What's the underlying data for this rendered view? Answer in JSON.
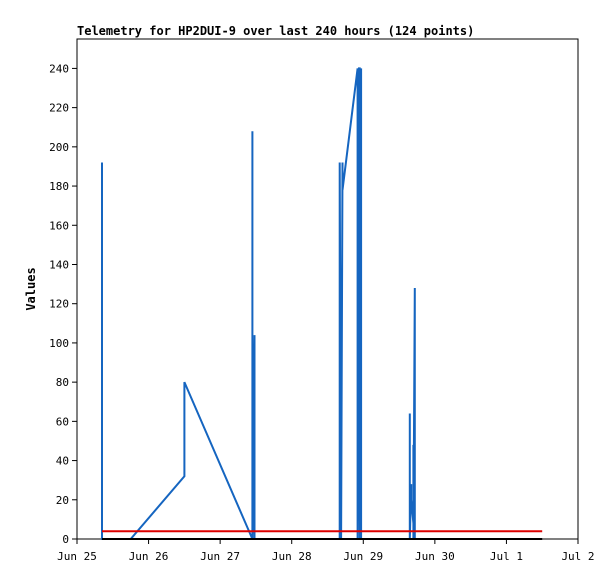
{
  "chart_data": {
    "type": "line",
    "title": "Telemetry for HP2DUI-9 over last 240 hours (124 points)",
    "xlabel": "",
    "ylabel": "Values",
    "x_ticks": [
      "Jun 25",
      "Jun 26",
      "Jun 27",
      "Jun 28",
      "Jun 29",
      "Jun 30",
      "Jul 1",
      "Jul 2"
    ],
    "xlim_days": [
      0,
      7
    ],
    "ylim": [
      0,
      255
    ],
    "y_ticks": [
      0,
      20,
      40,
      60,
      80,
      100,
      120,
      140,
      160,
      180,
      200,
      220,
      240
    ],
    "grid": false,
    "legend": "none",
    "series": [
      {
        "color": "#1565c0",
        "points": [
          [
            0.35,
            0
          ],
          [
            0.35,
            192
          ],
          [
            0.35,
            0
          ],
          [
            0.75,
            0
          ],
          [
            1.5,
            32
          ],
          [
            1.5,
            80
          ],
          [
            2.45,
            0
          ],
          [
            2.45,
            208
          ],
          [
            2.45,
            0
          ],
          [
            2.48,
            104
          ],
          [
            2.48,
            0
          ],
          [
            3.67,
            0
          ],
          [
            3.67,
            192
          ],
          [
            3.69,
            0
          ],
          [
            3.71,
            192
          ],
          [
            3.71,
            178
          ],
          [
            3.92,
            240
          ],
          [
            3.92,
            0
          ],
          [
            3.94,
            144
          ],
          [
            3.94,
            240
          ],
          [
            3.95,
            240
          ],
          [
            3.95,
            0
          ],
          [
            3.97,
            240
          ],
          [
            3.97,
            0
          ],
          [
            4.65,
            0
          ],
          [
            4.65,
            64
          ],
          [
            4.65,
            0
          ],
          [
            4.67,
            28
          ],
          [
            4.67,
            20
          ],
          [
            4.7,
            8
          ],
          [
            4.7,
            48
          ],
          [
            4.7,
            0
          ],
          [
            4.72,
            128
          ],
          [
            4.72,
            0
          ]
        ]
      },
      {
        "color": "#dd0000",
        "points": [
          [
            0.35,
            4
          ],
          [
            6.5,
            4
          ]
        ]
      },
      {
        "color": "#000000",
        "points": [
          [
            0.35,
            0
          ],
          [
            6.5,
            0
          ]
        ]
      }
    ]
  }
}
